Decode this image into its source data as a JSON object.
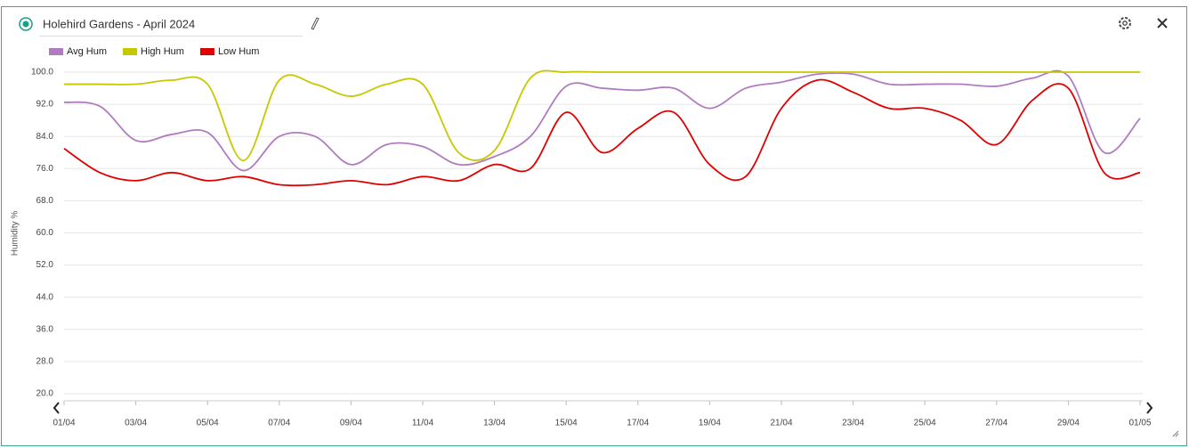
{
  "chart_data": {
    "type": "line",
    "title": "Holehird Gardens - April 2024",
    "y_label": "Humidity %",
    "categories": [
      "01/04",
      null,
      "03/04",
      null,
      "05/04",
      null,
      "07/04",
      null,
      "09/04",
      null,
      "11/04",
      null,
      "13/04",
      null,
      "15/04",
      null,
      "17/04",
      null,
      "19/04",
      null,
      "21/04",
      null,
      "23/04",
      null,
      "25/04",
      null,
      "27/04",
      null,
      "29/04",
      null,
      "01/05"
    ],
    "series": [
      {
        "name": "Avg Hum",
        "color": "#b07cc0",
        "values": [
          92.5,
          91.5,
          83,
          84.5,
          85,
          75.5,
          84,
          84,
          77,
          82,
          81.5,
          77,
          79,
          84,
          96.5,
          96,
          95.5,
          96,
          91,
          96,
          97.5,
          99.5,
          99.5,
          97,
          97,
          97,
          96.5,
          98.5,
          99,
          80,
          88.5
        ]
      },
      {
        "name": "High Hum",
        "color": "#c8c800",
        "values": [
          97,
          97,
          97,
          98,
          97,
          78,
          98,
          97,
          94,
          97,
          97,
          80,
          80.5,
          98.5,
          100,
          100,
          100,
          100,
          100,
          100,
          100,
          100,
          100,
          100,
          100,
          100,
          100,
          100,
          100,
          100,
          100
        ]
      },
      {
        "name": "Low Hum",
        "color": "#e00000",
        "values": [
          81,
          75,
          73,
          75,
          73,
          74,
          72,
          72,
          73,
          72,
          74,
          73,
          77,
          76,
          90,
          80,
          86,
          90,
          77,
          74,
          91,
          98,
          95,
          91,
          91,
          88,
          82,
          93,
          96,
          75,
          75
        ]
      }
    ],
    "ylim": [
      20,
      100
    ],
    "yticks": [
      {
        "value": 20,
        "label": "20.0"
      },
      {
        "value": 28,
        "label": "28.0"
      },
      {
        "value": 36,
        "label": "36.0"
      },
      {
        "value": 44,
        "label": "44.0"
      },
      {
        "value": 52,
        "label": "52.0"
      },
      {
        "value": 60,
        "label": "60.0"
      },
      {
        "value": 68,
        "label": "68.0"
      },
      {
        "value": 76,
        "label": "76.0"
      },
      {
        "value": 84,
        "label": "84.0"
      },
      {
        "value": 92,
        "label": "92.0"
      },
      {
        "value": 100,
        "label": "100.0"
      }
    ],
    "grid": true,
    "legend": "top-left"
  }
}
